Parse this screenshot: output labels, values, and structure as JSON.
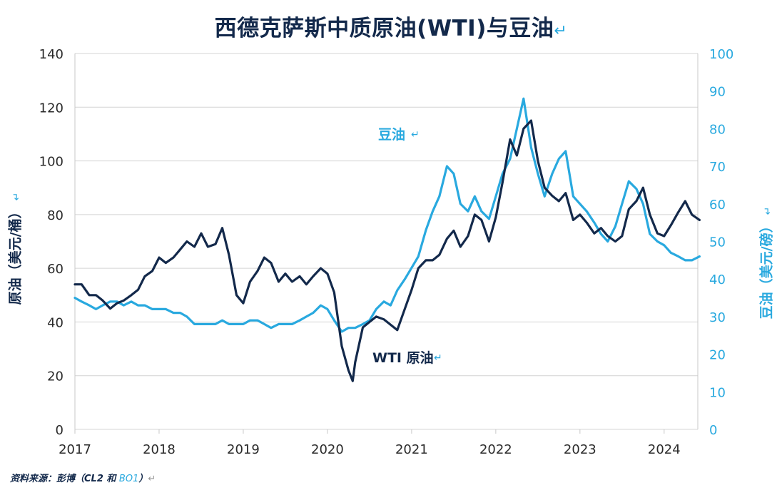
{
  "chart_data": {
    "type": "line",
    "title": "西德克萨斯中质原油(WTI)与豆油",
    "ylabel_left": "原油（美元/桶）",
    "ylabel_right": "豆油（美元/磅）",
    "x_ticks": [
      "2017",
      "2018",
      "2019",
      "2020",
      "2021",
      "2022",
      "2023",
      "2024"
    ],
    "ylim_left": [
      0,
      140
    ],
    "ylim_right": [
      0,
      100
    ],
    "y_ticks_left": [
      0,
      20,
      40,
      60,
      80,
      100,
      120,
      140
    ],
    "y_ticks_right": [
      0,
      10,
      20,
      30,
      40,
      50,
      60,
      70,
      80,
      90,
      100
    ],
    "grid": true,
    "colors": {
      "wti": "#13294B",
      "bo": "#29A9DF"
    },
    "series": [
      {
        "name": "WTI 原油",
        "axis": "left",
        "x": [
          2017.0,
          2017.08,
          2017.17,
          2017.25,
          2017.33,
          2017.42,
          2017.5,
          2017.58,
          2017.67,
          2017.75,
          2017.83,
          2017.92,
          2018.0,
          2018.08,
          2018.17,
          2018.25,
          2018.33,
          2018.42,
          2018.5,
          2018.58,
          2018.67,
          2018.75,
          2018.83,
          2018.92,
          2019.0,
          2019.08,
          2019.17,
          2019.25,
          2019.33,
          2019.42,
          2019.5,
          2019.58,
          2019.67,
          2019.75,
          2019.83,
          2019.92,
          2020.0,
          2020.08,
          2020.17,
          2020.25,
          2020.3,
          2020.33,
          2020.42,
          2020.5,
          2020.58,
          2020.67,
          2020.75,
          2020.83,
          2020.92,
          2021.0,
          2021.08,
          2021.17,
          2021.25,
          2021.33,
          2021.42,
          2021.5,
          2021.58,
          2021.67,
          2021.75,
          2021.83,
          2021.92,
          2022.0,
          2022.08,
          2022.17,
          2022.25,
          2022.33,
          2022.42,
          2022.5,
          2022.58,
          2022.67,
          2022.75,
          2022.83,
          2022.92,
          2023.0,
          2023.08,
          2023.17,
          2023.25,
          2023.33,
          2023.42,
          2023.5,
          2023.58,
          2023.67,
          2023.75,
          2023.83,
          2023.92,
          2024.0,
          2024.08,
          2024.17,
          2024.25,
          2024.33,
          2024.42
        ],
        "values": [
          54,
          54,
          50,
          50,
          48,
          45,
          47,
          48,
          50,
          52,
          57,
          59,
          64,
          62,
          64,
          67,
          70,
          68,
          73,
          68,
          69,
          75,
          65,
          50,
          47,
          55,
          59,
          64,
          62,
          55,
          58,
          55,
          57,
          54,
          57,
          60,
          58,
          51,
          31,
          22,
          18,
          25,
          38,
          40,
          42,
          41,
          39,
          37,
          45,
          52,
          60,
          63,
          63,
          65,
          71,
          74,
          68,
          72,
          80,
          78,
          70,
          79,
          92,
          108,
          102,
          112,
          115,
          100,
          90,
          87,
          85,
          88,
          78,
          80,
          77,
          73,
          75,
          72,
          70,
          72,
          82,
          85,
          90,
          80,
          73,
          72,
          76,
          81,
          85,
          80,
          78
        ]
      },
      {
        "name": "豆油",
        "axis": "right",
        "x": [
          2017.0,
          2017.08,
          2017.17,
          2017.25,
          2017.33,
          2017.42,
          2017.5,
          2017.58,
          2017.67,
          2017.75,
          2017.83,
          2017.92,
          2018.0,
          2018.08,
          2018.17,
          2018.25,
          2018.33,
          2018.42,
          2018.5,
          2018.58,
          2018.67,
          2018.75,
          2018.83,
          2018.92,
          2019.0,
          2019.08,
          2019.17,
          2019.25,
          2019.33,
          2019.42,
          2019.5,
          2019.58,
          2019.67,
          2019.75,
          2019.83,
          2019.92,
          2020.0,
          2020.08,
          2020.17,
          2020.25,
          2020.3,
          2020.33,
          2020.42,
          2020.5,
          2020.58,
          2020.67,
          2020.75,
          2020.83,
          2020.92,
          2021.0,
          2021.08,
          2021.17,
          2021.25,
          2021.33,
          2021.42,
          2021.5,
          2021.58,
          2021.67,
          2021.75,
          2021.83,
          2021.92,
          2022.0,
          2022.08,
          2022.17,
          2022.25,
          2022.33,
          2022.42,
          2022.5,
          2022.58,
          2022.67,
          2022.75,
          2022.83,
          2022.92,
          2023.0,
          2023.08,
          2023.17,
          2023.25,
          2023.33,
          2023.42,
          2023.5,
          2023.58,
          2023.67,
          2023.75,
          2023.83,
          2023.92,
          2024.0,
          2024.08,
          2024.17,
          2024.25,
          2024.33,
          2024.42
        ],
        "values": [
          35,
          34,
          33,
          32,
          33,
          34,
          34,
          33,
          34,
          33,
          33,
          32,
          32,
          32,
          31,
          31,
          30,
          28,
          28,
          28,
          28,
          29,
          28,
          28,
          28,
          29,
          29,
          28,
          27,
          28,
          28,
          28,
          29,
          30,
          31,
          33,
          32,
          29,
          26,
          27,
          27,
          27,
          28,
          29,
          32,
          34,
          33,
          37,
          40,
          43,
          46,
          53,
          58,
          62,
          70,
          68,
          60,
          58,
          62,
          58,
          56,
          62,
          68,
          72,
          80,
          88,
          75,
          68,
          62,
          68,
          72,
          74,
          62,
          60,
          58,
          55,
          52,
          50,
          54,
          60,
          66,
          64,
          60,
          52,
          50,
          49,
          47,
          46,
          45,
          45,
          46
        ]
      }
    ],
    "annotations": {
      "bo_label": "豆油",
      "wti_label": "WTI 原油"
    }
  },
  "source": {
    "prefix": "资料来源：彭博（CL2 和 ",
    "bo": "BO1",
    "suffix": "）"
  }
}
